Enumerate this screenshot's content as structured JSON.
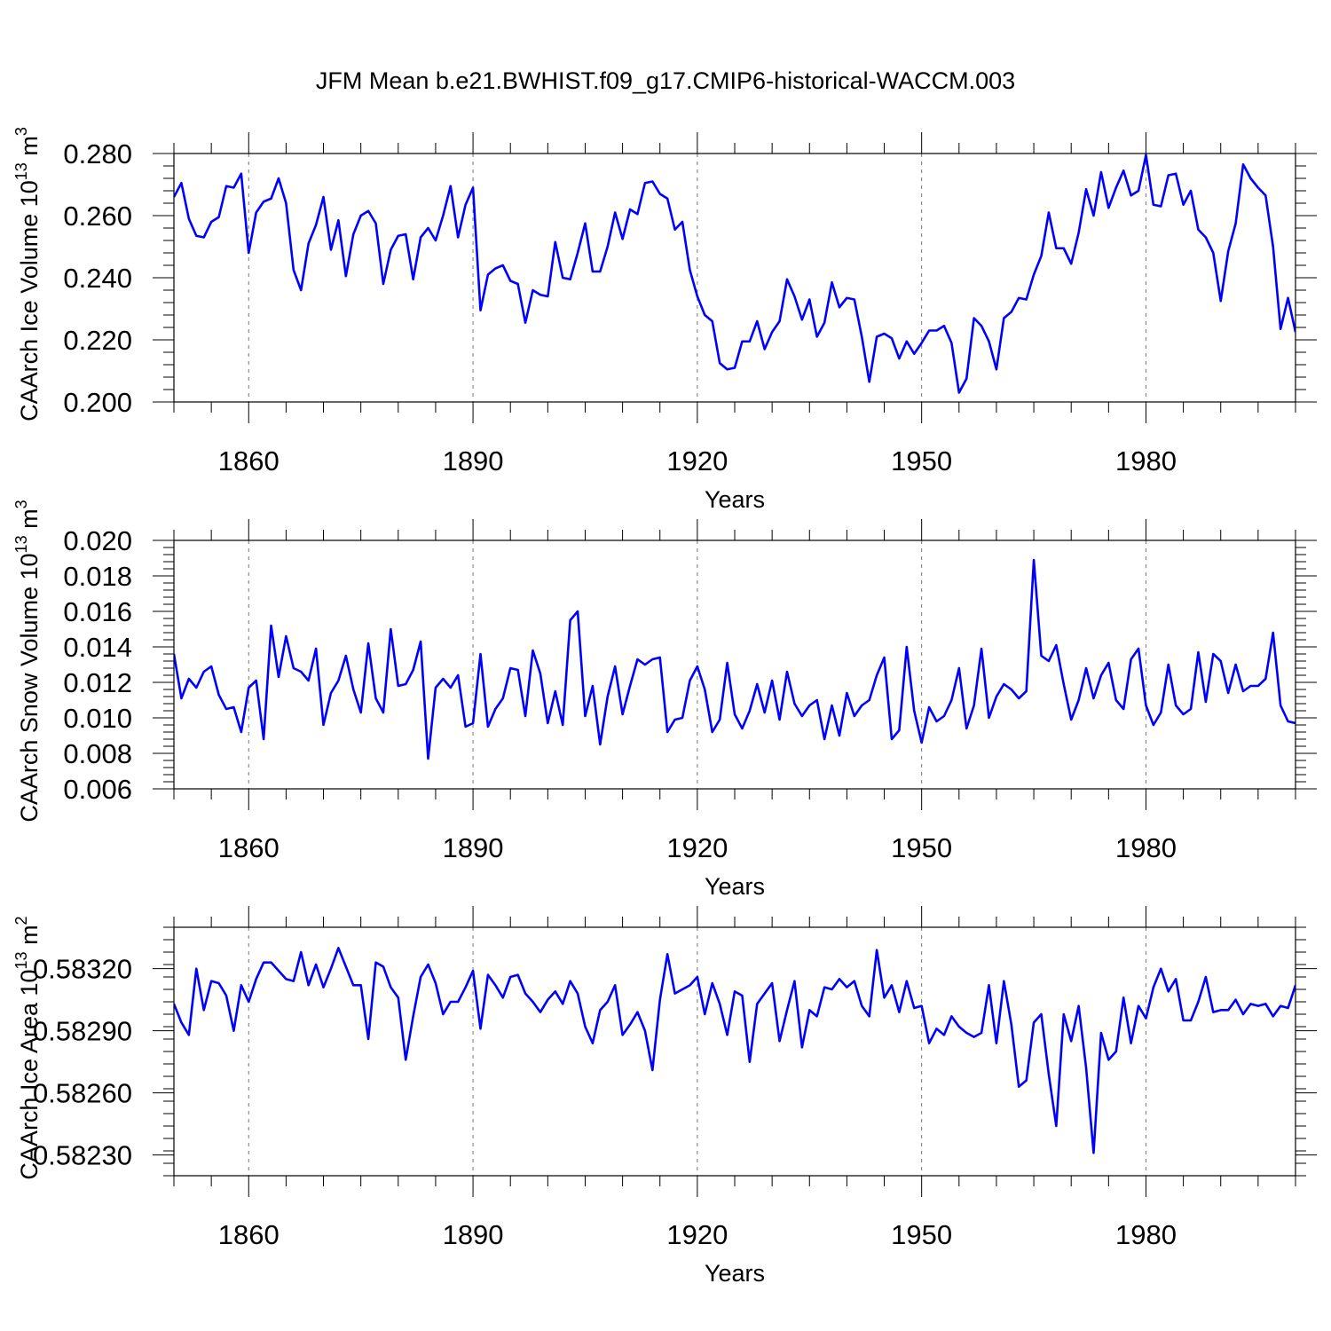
{
  "title": "JFM Mean b.e21.BWHIST.f09_g17.CMIP6-historical-WACCM.003",
  "line_color": "#0000ff",
  "chart_data": [
    {
      "type": "line",
      "ylabel_main": "CAArch Ice Volume 10",
      "ylabel_exp": "13",
      "ylabel_unit": " m",
      "ylabel_unit_exp": "3",
      "xlabel": "Years",
      "xlim": [
        1850,
        2000
      ],
      "ylim": [
        0.2,
        0.28
      ],
      "xticks": [
        1860,
        1890,
        1920,
        1950,
        1980
      ],
      "xtick_labels": [
        "1860",
        "1890",
        "1920",
        "1950",
        "1980"
      ],
      "yticks": [
        0.2,
        0.22,
        0.24,
        0.26,
        0.28
      ],
      "ytick_labels": [
        "0.200",
        "0.220",
        "0.240",
        "0.260",
        "0.280"
      ],
      "series": [
        {
          "name": "CAArch Ice Volume",
          "x_start": 1850,
          "values": [
            0.266,
            0.2705,
            0.259,
            0.2535,
            0.253,
            0.258,
            0.2595,
            0.2695,
            0.269,
            0.2735,
            0.248,
            0.261,
            0.2645,
            0.2655,
            0.272,
            0.264,
            0.2425,
            0.236,
            0.251,
            0.257,
            0.266,
            0.249,
            0.2585,
            0.2405,
            0.254,
            0.26,
            0.2615,
            0.2575,
            0.238,
            0.249,
            0.2535,
            0.254,
            0.2395,
            0.253,
            0.256,
            0.252,
            0.26,
            0.2695,
            0.253,
            0.2635,
            0.269,
            0.2295,
            0.241,
            0.243,
            0.244,
            0.239,
            0.238,
            0.2255,
            0.236,
            0.2345,
            0.234,
            0.2515,
            0.24,
            0.2395,
            0.248,
            0.2575,
            0.242,
            0.242,
            0.25,
            0.261,
            0.2525,
            0.262,
            0.2605,
            0.2705,
            0.271,
            0.267,
            0.2655,
            0.2555,
            0.258,
            0.2425,
            0.234,
            0.228,
            0.226,
            0.2125,
            0.2105,
            0.211,
            0.2195,
            0.2195,
            0.226,
            0.217,
            0.2225,
            0.226,
            0.2395,
            0.234,
            0.2265,
            0.233,
            0.221,
            0.2255,
            0.2385,
            0.2305,
            0.2335,
            0.233,
            0.221,
            0.2065,
            0.221,
            0.222,
            0.2205,
            0.214,
            0.2195,
            0.2155,
            0.219,
            0.223,
            0.223,
            0.2245,
            0.219,
            0.203,
            0.2075,
            0.227,
            0.2245,
            0.2195,
            0.2105,
            0.227,
            0.229,
            0.2335,
            0.233,
            0.241,
            0.247,
            0.261,
            0.2495,
            0.2495,
            0.2445,
            0.2545,
            0.2685,
            0.26,
            0.274,
            0.2625,
            0.269,
            0.2745,
            0.2665,
            0.268,
            0.2795,
            0.2635,
            0.263,
            0.273,
            0.2735,
            0.2635,
            0.268,
            0.2555,
            0.253,
            0.248,
            0.2325,
            0.2485,
            0.2575,
            0.2765,
            0.272,
            0.269,
            0.2665,
            0.25,
            0.2235,
            0.2335,
            0.2225
          ]
        }
      ]
    },
    {
      "type": "line",
      "ylabel_main": "CAArch Snow Volume 10",
      "ylabel_exp": "13",
      "ylabel_unit": " m",
      "ylabel_unit_exp": "3",
      "xlabel": "Years",
      "xlim": [
        1850,
        2000
      ],
      "ylim": [
        0.006,
        0.02
      ],
      "xticks": [
        1860,
        1890,
        1920,
        1950,
        1980
      ],
      "xtick_labels": [
        "1860",
        "1890",
        "1920",
        "1950",
        "1980"
      ],
      "yticks": [
        0.006,
        0.008,
        0.01,
        0.012,
        0.014,
        0.016,
        0.018,
        0.02
      ],
      "ytick_labels": [
        "0.006",
        "0.008",
        "0.010",
        "0.012",
        "0.014",
        "0.016",
        "0.018",
        "0.020"
      ],
      "series": [
        {
          "name": "CAArch Snow Volume",
          "x_start": 1850,
          "values": [
            0.0136,
            0.0111,
            0.0122,
            0.0117,
            0.0126,
            0.0129,
            0.0113,
            0.0105,
            0.0106,
            0.0092,
            0.0117,
            0.0121,
            0.0088,
            0.0152,
            0.0123,
            0.0146,
            0.0128,
            0.0126,
            0.0121,
            0.0139,
            0.0096,
            0.0114,
            0.0121,
            0.0135,
            0.0116,
            0.0103,
            0.0142,
            0.0111,
            0.0103,
            0.015,
            0.0118,
            0.0119,
            0.0127,
            0.0143,
            0.0077,
            0.0117,
            0.0122,
            0.0117,
            0.0124,
            0.0095,
            0.0097,
            0.0136,
            0.0095,
            0.0105,
            0.0111,
            0.0128,
            0.0127,
            0.0101,
            0.0138,
            0.0125,
            0.0097,
            0.0115,
            0.0096,
            0.0155,
            0.016,
            0.0101,
            0.0118,
            0.0085,
            0.0112,
            0.0129,
            0.0102,
            0.0118,
            0.0133,
            0.013,
            0.0133,
            0.0134,
            0.0092,
            0.0099,
            0.01,
            0.0121,
            0.0129,
            0.0116,
            0.0092,
            0.0099,
            0.0131,
            0.0102,
            0.0094,
            0.0104,
            0.0119,
            0.0103,
            0.0121,
            0.0099,
            0.0126,
            0.0108,
            0.0101,
            0.0107,
            0.011,
            0.0088,
            0.0107,
            0.009,
            0.0114,
            0.0101,
            0.0107,
            0.011,
            0.0124,
            0.0134,
            0.0088,
            0.0093,
            0.014,
            0.0104,
            0.0086,
            0.0106,
            0.0098,
            0.0101,
            0.011,
            0.0128,
            0.0094,
            0.0107,
            0.0139,
            0.01,
            0.0112,
            0.0119,
            0.0116,
            0.0111,
            0.0115,
            0.0189,
            0.0135,
            0.0132,
            0.0141,
            0.0119,
            0.0099,
            0.011,
            0.0128,
            0.0111,
            0.0124,
            0.0131,
            0.011,
            0.0105,
            0.0133,
            0.0139,
            0.0107,
            0.0096,
            0.0103,
            0.013,
            0.0107,
            0.0102,
            0.0105,
            0.0137,
            0.0109,
            0.0136,
            0.0132,
            0.0114,
            0.013,
            0.0115,
            0.0118,
            0.0118,
            0.0122,
            0.0148,
            0.0107,
            0.0098,
            0.0097
          ]
        }
      ]
    },
    {
      "type": "line",
      "ylabel_main": "CAArch Ice Area 10",
      "ylabel_exp": "13",
      "ylabel_unit": " m",
      "ylabel_unit_exp": "2",
      "xlabel": "Years",
      "xlim": [
        1850,
        2000
      ],
      "ylim": [
        0.5822,
        0.5834
      ],
      "xticks": [
        1860,
        1890,
        1920,
        1950,
        1980
      ],
      "xtick_labels": [
        "1860",
        "1890",
        "1920",
        "1950",
        "1980"
      ],
      "yticks": [
        0.5823,
        0.5826,
        0.5829,
        0.5832
      ],
      "ytick_labels": [
        "0.58230",
        "0.58260",
        "0.58290",
        "0.58320"
      ],
      "series": [
        {
          "name": "CAArch Ice Area",
          "x_start": 1850,
          "values": [
            0.58303,
            0.58294,
            0.58288,
            0.5832,
            0.583,
            0.58314,
            0.58313,
            0.58307,
            0.5829,
            0.58312,
            0.58304,
            0.58315,
            0.58323,
            0.58323,
            0.58319,
            0.58315,
            0.58314,
            0.58328,
            0.58312,
            0.58322,
            0.58311,
            0.5832,
            0.5833,
            0.58321,
            0.58312,
            0.58312,
            0.58286,
            0.58323,
            0.58321,
            0.58311,
            0.58306,
            0.58276,
            0.58297,
            0.58316,
            0.58322,
            0.58313,
            0.58298,
            0.58304,
            0.58304,
            0.58311,
            0.58319,
            0.58291,
            0.58317,
            0.58312,
            0.58306,
            0.58316,
            0.58317,
            0.58308,
            0.58304,
            0.58299,
            0.58305,
            0.58309,
            0.58303,
            0.58314,
            0.58308,
            0.58292,
            0.58284,
            0.583,
            0.58304,
            0.58312,
            0.58288,
            0.58293,
            0.58299,
            0.5829,
            0.58271,
            0.58305,
            0.58327,
            0.58308,
            0.5831,
            0.58312,
            0.58316,
            0.58298,
            0.58313,
            0.58303,
            0.58288,
            0.58309,
            0.58307,
            0.58275,
            0.58303,
            0.58308,
            0.58313,
            0.58285,
            0.583,
            0.58314,
            0.58282,
            0.583,
            0.58297,
            0.58311,
            0.5831,
            0.58315,
            0.58311,
            0.58314,
            0.58302,
            0.58297,
            0.58329,
            0.58306,
            0.58312,
            0.58299,
            0.58314,
            0.58301,
            0.58302,
            0.58284,
            0.58291,
            0.58288,
            0.58297,
            0.58292,
            0.58289,
            0.58287,
            0.58289,
            0.58312,
            0.58284,
            0.58314,
            0.58293,
            0.58263,
            0.58266,
            0.58294,
            0.58298,
            0.58269,
            0.58244,
            0.58298,
            0.58285,
            0.58302,
            0.58272,
            0.58231,
            0.58289,
            0.58276,
            0.5828,
            0.58306,
            0.58284,
            0.58302,
            0.58296,
            0.58311,
            0.5832,
            0.58309,
            0.58315,
            0.58295,
            0.58295,
            0.58304,
            0.58316,
            0.58299,
            0.583,
            0.583,
            0.58305,
            0.58298,
            0.58303,
            0.58302,
            0.58303,
            0.58297,
            0.58302,
            0.58301,
            0.58312
          ]
        }
      ]
    }
  ]
}
